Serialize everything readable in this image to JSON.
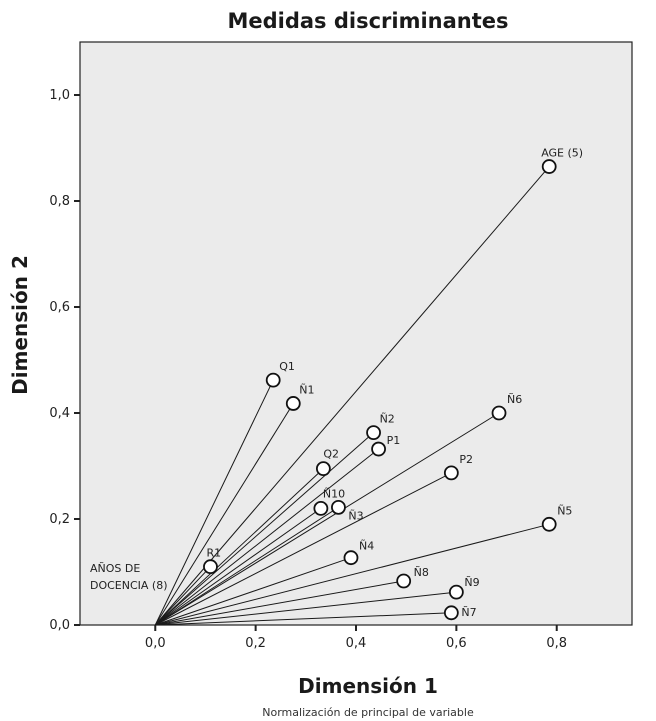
{
  "chart_data": {
    "type": "scatter",
    "title": "Medidas discriminantes",
    "xlabel": "Dimensión 1",
    "ylabel": "Dimensión 2",
    "footnote": "Normalización de principal de variable",
    "xlim": [
      -0.15,
      0.95
    ],
    "ylim": [
      0.0,
      1.1
    ],
    "xticks": [
      "0,0",
      "0,2",
      "0,4",
      "0,6",
      "0,8"
    ],
    "yticks": [
      "0,0",
      "0,2",
      "0,4",
      "0,6",
      "0,8",
      "1,0"
    ],
    "grid": false,
    "vectors_from_origin": true,
    "points": [
      {
        "label": "AGE (5)",
        "x": 0.785,
        "y": 0.865
      },
      {
        "label": "Q1",
        "x": 0.235,
        "y": 0.462
      },
      {
        "label": "Ñ1",
        "x": 0.275,
        "y": 0.418
      },
      {
        "label": "Ñ6",
        "x": 0.685,
        "y": 0.4
      },
      {
        "label": "Ñ2",
        "x": 0.435,
        "y": 0.363
      },
      {
        "label": "P1",
        "x": 0.445,
        "y": 0.332
      },
      {
        "label": "Q2",
        "x": 0.335,
        "y": 0.295
      },
      {
        "label": "P2",
        "x": 0.59,
        "y": 0.287
      },
      {
        "label": "Ñ10",
        "x": 0.33,
        "y": 0.22
      },
      {
        "label": "Ñ3",
        "x": 0.365,
        "y": 0.222
      },
      {
        "label": "Ñ5",
        "x": 0.785,
        "y": 0.19
      },
      {
        "label": "Ñ4",
        "x": 0.39,
        "y": 0.127
      },
      {
        "label": "R1",
        "x": 0.11,
        "y": 0.11
      },
      {
        "label": "Ñ8",
        "x": 0.495,
        "y": 0.083
      },
      {
        "label": "Ñ9",
        "x": 0.6,
        "y": 0.062
      },
      {
        "label": "Ñ7",
        "x": 0.59,
        "y": 0.023
      }
    ],
    "origin_annotation": [
      "AÑOS DE",
      "DOCENCIA (8)"
    ]
  }
}
